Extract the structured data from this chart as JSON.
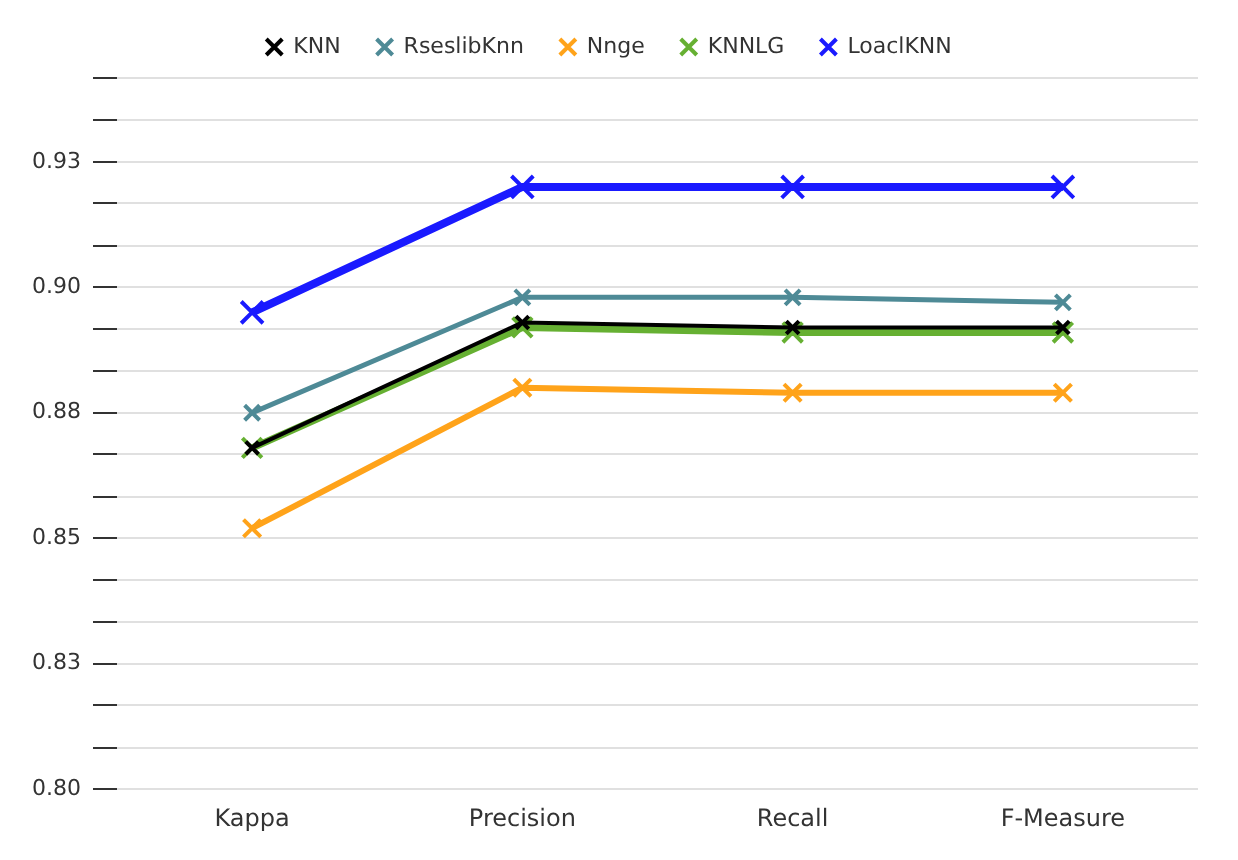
{
  "chart_data": {
    "type": "line",
    "categories": [
      "Kappa",
      "Precision",
      "Recall",
      "F-Measure"
    ],
    "series": [
      {
        "name": "KNN",
        "color": "#000000",
        "values": [
          0.868,
          0.893,
          0.892,
          0.892
        ]
      },
      {
        "name": "RseslibKnn",
        "color": "#4e8a96",
        "values": [
          0.875,
          0.898,
          0.898,
          0.897
        ]
      },
      {
        "name": "Nnge",
        "color": "#ffa31a",
        "values": [
          0.852,
          0.88,
          0.879,
          0.879
        ]
      },
      {
        "name": "KNNLG",
        "color": "#66b032",
        "values": [
          0.868,
          0.892,
          0.891,
          0.891
        ]
      },
      {
        "name": "LoaclKNN",
        "color": "#1a1aff",
        "values": [
          0.895,
          0.92,
          0.92,
          0.92
        ]
      }
    ],
    "ylim": [
      0.8,
      0.9417
    ],
    "yticks": [
      {
        "value": 0.8,
        "label": "0.80"
      },
      {
        "value": 0.8083,
        "label": null
      },
      {
        "value": 0.8167,
        "label": null
      },
      {
        "value": 0.825,
        "label": "0.83"
      },
      {
        "value": 0.8333,
        "label": null
      },
      {
        "value": 0.8417,
        "label": null
      },
      {
        "value": 0.85,
        "label": "0.85"
      },
      {
        "value": 0.8583,
        "label": null
      },
      {
        "value": 0.8667,
        "label": null
      },
      {
        "value": 0.875,
        "label": "0.88"
      },
      {
        "value": 0.8833,
        "label": null
      },
      {
        "value": 0.8917,
        "label": null
      },
      {
        "value": 0.9,
        "label": "0.90"
      },
      {
        "value": 0.9083,
        "label": null
      },
      {
        "value": 0.9167,
        "label": null
      },
      {
        "value": 0.925,
        "label": "0.93"
      },
      {
        "value": 0.9333,
        "label": null
      },
      {
        "value": 0.9417,
        "label": null
      }
    ],
    "grid": "y",
    "legend": "top",
    "marker": "cross",
    "line_style": "solid"
  }
}
